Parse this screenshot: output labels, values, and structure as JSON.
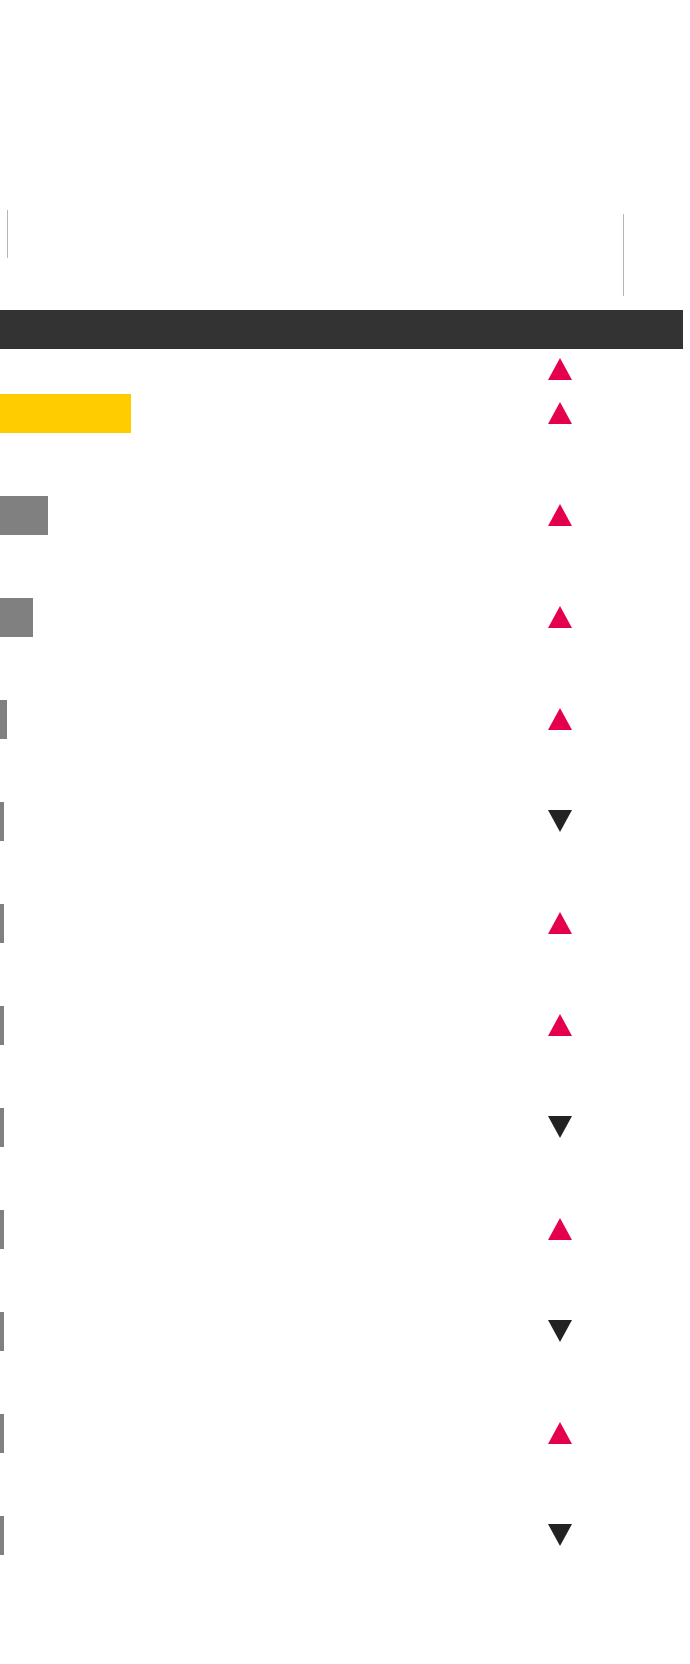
{
  "colors": {
    "header": "#333333",
    "highlight": "#ffcc00",
    "bar": "#808080",
    "up": "#e5004f",
    "down": "#222222"
  },
  "rows": [
    {
      "bar_share": null,
      "bar_style": "none",
      "trend": "up"
    },
    {
      "bar_share": 1.0,
      "bar_style": "highlight",
      "trend": "up"
    },
    {
      "bar_share": 0.37,
      "bar_style": "bar",
      "trend": "up"
    },
    {
      "bar_share": 0.25,
      "bar_style": "bar",
      "trend": "up"
    },
    {
      "bar_share": 0.05,
      "bar_style": "bar",
      "trend": "up"
    },
    {
      "bar_share": 0.03,
      "bar_style": "bar",
      "trend": "down"
    },
    {
      "bar_share": 0.03,
      "bar_style": "bar",
      "trend": "up"
    },
    {
      "bar_share": 0.03,
      "bar_style": "bar",
      "trend": "up"
    },
    {
      "bar_share": 0.03,
      "bar_style": "bar",
      "trend": "down"
    },
    {
      "bar_share": 0.03,
      "bar_style": "bar",
      "trend": "up"
    },
    {
      "bar_share": 0.03,
      "bar_style": "bar",
      "trend": "down"
    },
    {
      "bar_share": 0.03,
      "bar_style": "bar",
      "trend": "up"
    },
    {
      "bar_share": 0.03,
      "bar_style": "bar",
      "trend": "down"
    }
  ]
}
